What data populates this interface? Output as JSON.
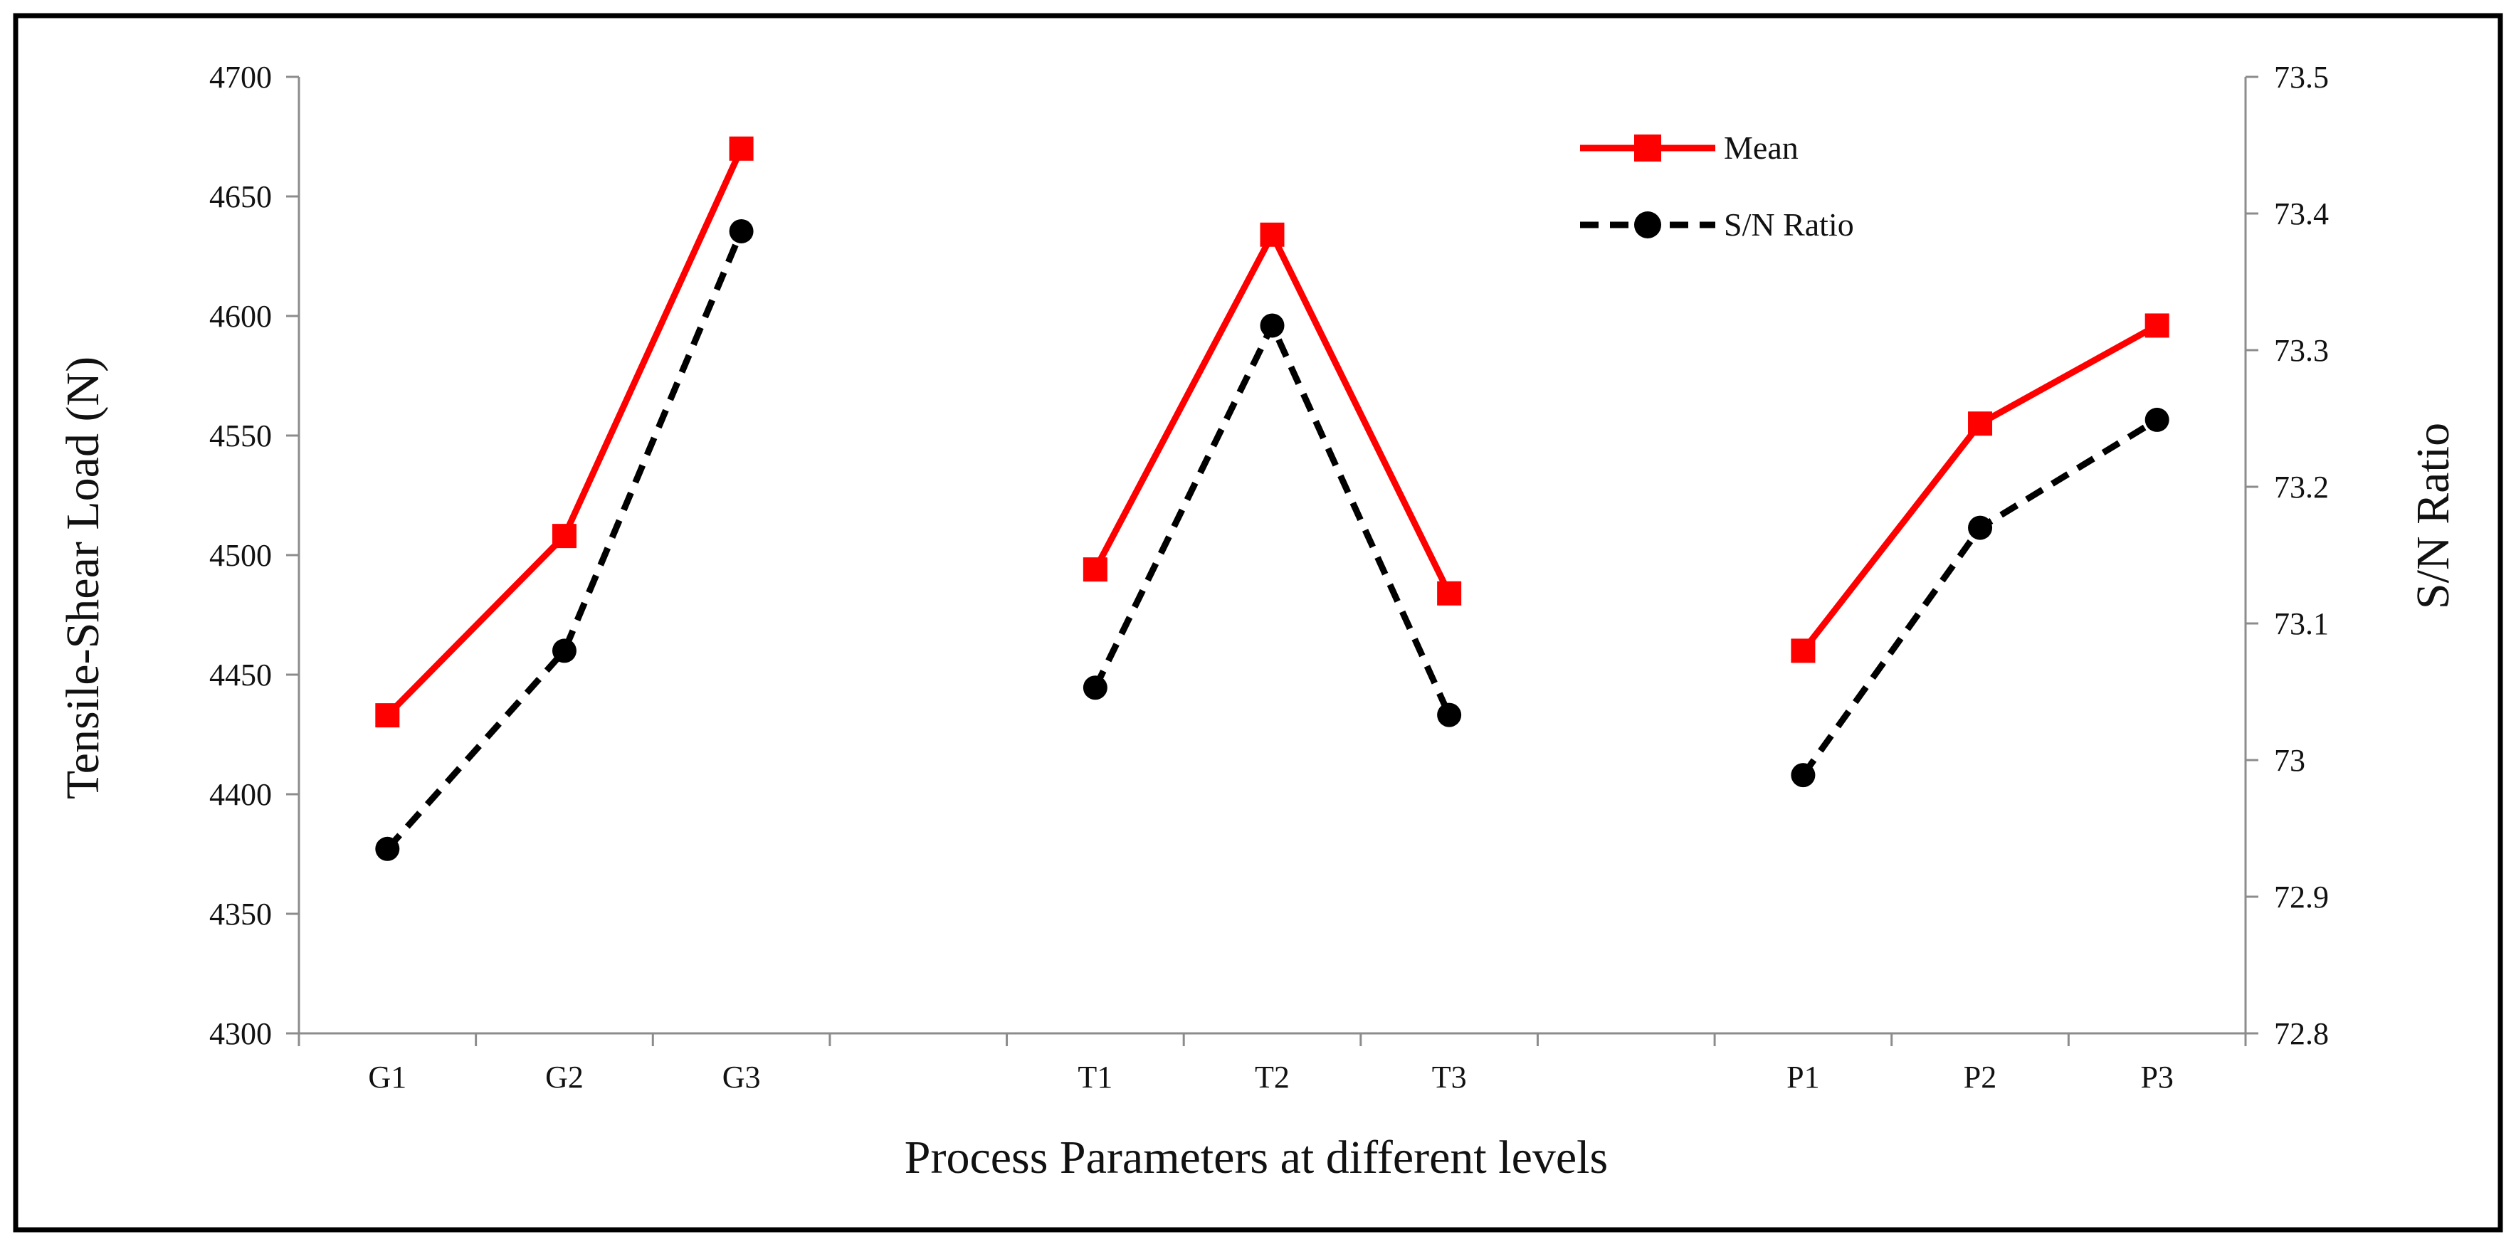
{
  "chart_data": {
    "type": "line",
    "title": "",
    "xlabel": "Process Parameters at different levels",
    "ylabel": "Tensile-Shear Load (N)",
    "y2label": "S/N Ratio",
    "categories": [
      "G1",
      "G2",
      "G3",
      "",
      "T1",
      "T2",
      "T3",
      "",
      "P1",
      "P2",
      "P3"
    ],
    "ylim": [
      4300,
      4700
    ],
    "y_ticks": [
      "4300",
      "4350",
      "4400",
      "4450",
      "4500",
      "4550",
      "4600",
      "4650",
      "4700"
    ],
    "y2lim": [
      72.8,
      73.5
    ],
    "y2_ticks": [
      "72.8",
      "72.9",
      "73",
      "73.1",
      "73.2",
      "73.3",
      "73.4",
      "73.5"
    ],
    "grid": false,
    "legend_position": "top-right",
    "series": [
      {
        "name": "Mean",
        "axis": "left",
        "color": "#ff0000",
        "dash": "solid",
        "marker": "square",
        "groups": [
          [
            4433,
            4508,
            4670
          ],
          [
            4494,
            4634,
            4484
          ],
          [
            4460,
            4555,
            4596
          ]
        ]
      },
      {
        "name": "S/N Ratio",
        "axis": "right",
        "color": "#000000",
        "dash": "dashed",
        "marker": "circle",
        "groups": [
          [
            72.935,
            73.08,
            73.387
          ],
          [
            73.053,
            73.318,
            73.033
          ],
          [
            72.989,
            73.17,
            73.249
          ]
        ]
      }
    ]
  }
}
